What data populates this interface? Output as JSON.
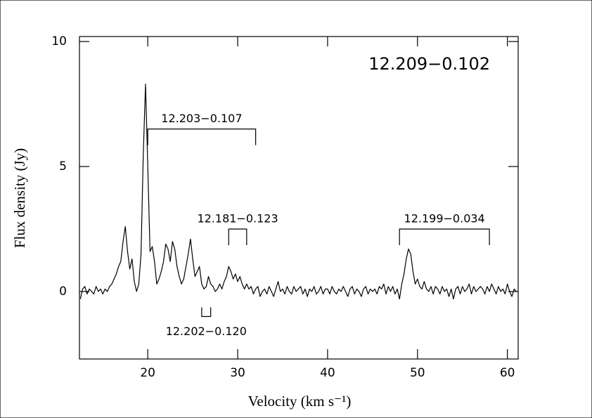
{
  "chart_data": {
    "type": "line",
    "title": "12.209−0.102",
    "x_label": "Velocity (km s⁻¹)",
    "y_label": "Flux density (Jy)",
    "xlim": [
      12.4,
      61.2
    ],
    "ylim": [
      -2.7,
      10.2
    ],
    "xticks": [
      20,
      30,
      40,
      50,
      60
    ],
    "yticks": [
      0,
      5,
      10
    ],
    "color": "#000000",
    "x": [
      12.5,
      12.75,
      13,
      13.25,
      13.5,
      13.75,
      14,
      14.25,
      14.5,
      14.75,
      15,
      15.25,
      15.5,
      15.75,
      16,
      16.25,
      16.5,
      16.75,
      17,
      17.25,
      17.5,
      17.75,
      18,
      18.25,
      18.5,
      18.75,
      19,
      19.25,
      19.5,
      19.75,
      20,
      20.25,
      20.5,
      20.75,
      21,
      21.25,
      21.5,
      21.75,
      22,
      22.25,
      22.5,
      22.75,
      23,
      23.25,
      23.5,
      23.75,
      24,
      24.25,
      24.5,
      24.75,
      25,
      25.25,
      25.5,
      25.75,
      26,
      26.25,
      26.5,
      26.75,
      27,
      27.25,
      27.5,
      27.75,
      28,
      28.25,
      28.5,
      28.75,
      29,
      29.25,
      29.5,
      29.75,
      30,
      30.25,
      30.5,
      30.75,
      31,
      31.25,
      31.5,
      31.75,
      32,
      32.25,
      32.5,
      32.75,
      33,
      33.25,
      33.5,
      33.75,
      34,
      34.25,
      34.5,
      34.75,
      35,
      35.25,
      35.5,
      35.75,
      36,
      36.25,
      36.5,
      36.75,
      37,
      37.25,
      37.5,
      37.75,
      38,
      38.25,
      38.5,
      38.75,
      39,
      39.25,
      39.5,
      39.75,
      40,
      40.25,
      40.5,
      40.75,
      41,
      41.25,
      41.5,
      41.75,
      42,
      42.25,
      42.5,
      42.75,
      43,
      43.25,
      43.5,
      43.75,
      44,
      44.25,
      44.5,
      44.75,
      45,
      45.25,
      45.5,
      45.75,
      46,
      46.25,
      46.5,
      46.75,
      47,
      47.25,
      47.5,
      47.75,
      48,
      48.25,
      48.5,
      48.75,
      49,
      49.25,
      49.5,
      49.75,
      50,
      50.25,
      50.5,
      50.75,
      51,
      51.25,
      51.5,
      51.75,
      52,
      52.25,
      52.5,
      52.75,
      53,
      53.25,
      53.5,
      53.75,
      54,
      54.25,
      54.5,
      54.75,
      55,
      55.25,
      55.5,
      55.75,
      56,
      56.25,
      56.5,
      56.75,
      57,
      57.25,
      57.5,
      57.75,
      58,
      58.25,
      58.5,
      58.75,
      59,
      59.25,
      59.5,
      59.75,
      60,
      60.25,
      60.5,
      60.75,
      61
    ],
    "values": [
      -0.3,
      0.1,
      0.2,
      -0.1,
      0.1,
      0.0,
      -0.1,
      0.2,
      0.0,
      0.1,
      -0.1,
      0.1,
      0.0,
      0.2,
      0.3,
      0.5,
      0.7,
      1.0,
      1.2,
      2.0,
      2.6,
      1.6,
      0.9,
      1.3,
      0.4,
      0.0,
      0.3,
      1.5,
      5.5,
      8.3,
      5.0,
      1.6,
      1.8,
      1.2,
      0.3,
      0.5,
      0.8,
      1.2,
      1.9,
      1.7,
      1.2,
      2.0,
      1.7,
      1.0,
      0.6,
      0.3,
      0.5,
      1.0,
      1.5,
      2.1,
      1.3,
      0.6,
      0.8,
      1.0,
      0.3,
      0.1,
      0.2,
      0.6,
      0.3,
      0.2,
      0.0,
      0.1,
      0.3,
      0.1,
      0.4,
      0.6,
      1.0,
      0.8,
      0.5,
      0.7,
      0.4,
      0.6,
      0.3,
      0.1,
      0.3,
      0.1,
      0.2,
      -0.1,
      0.1,
      0.2,
      -0.2,
      0.0,
      0.1,
      -0.1,
      0.2,
      0.0,
      -0.2,
      0.1,
      0.4,
      0.0,
      0.1,
      -0.1,
      0.2,
      0.0,
      -0.1,
      0.2,
      0.0,
      0.1,
      0.2,
      -0.1,
      0.1,
      -0.2,
      0.1,
      0.0,
      0.2,
      -0.1,
      0.0,
      0.2,
      -0.1,
      0.1,
      0.1,
      -0.1,
      0.2,
      0.0,
      -0.1,
      0.1,
      0.0,
      0.2,
      0.0,
      -0.2,
      0.1,
      0.2,
      -0.1,
      0.1,
      0.0,
      -0.2,
      0.1,
      0.2,
      -0.1,
      0.1,
      0.0,
      0.1,
      -0.1,
      0.2,
      0.1,
      0.3,
      -0.1,
      0.2,
      0.0,
      0.2,
      -0.1,
      0.1,
      -0.3,
      0.3,
      0.7,
      1.3,
      1.7,
      1.5,
      0.8,
      0.3,
      0.5,
      0.2,
      0.1,
      0.4,
      0.1,
      0.0,
      0.2,
      -0.1,
      0.2,
      0.1,
      -0.1,
      0.2,
      0.0,
      0.1,
      -0.2,
      0.1,
      -0.3,
      0.1,
      0.2,
      -0.1,
      0.2,
      0.0,
      0.1,
      0.3,
      -0.1,
      0.2,
      0.0,
      0.1,
      0.2,
      0.1,
      -0.1,
      0.2,
      0.0,
      0.3,
      0.1,
      -0.1,
      0.2,
      0.0,
      0.1,
      -0.1,
      0.3,
      0.0,
      -0.2,
      0.1,
      0.0
    ],
    "annotations": [
      {
        "text": "12.203−0.107",
        "range": [
          20,
          32
        ],
        "level": 6.5,
        "side": "above"
      },
      {
        "text": "12.181−0.123",
        "range": [
          29,
          31
        ],
        "level": 2.5,
        "side": "above"
      },
      {
        "text": "12.199−0.034",
        "range": [
          48,
          58
        ],
        "level": 2.5,
        "side": "above"
      },
      {
        "text": "12.202−0.120",
        "range": [
          26,
          27
        ],
        "level": -1.0,
        "side": "below"
      }
    ]
  }
}
